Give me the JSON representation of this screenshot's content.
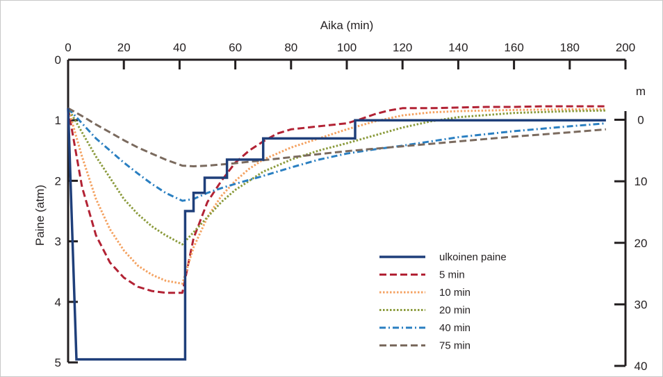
{
  "chart_data": {
    "type": "line",
    "xlabel": "Aika (min)",
    "ylabel": "Paine (atm)",
    "y2label": "m",
    "xlim": [
      0,
      200
    ],
    "ylim": [
      0,
      5
    ],
    "y2lim": [
      -10,
      40
    ],
    "y_inverted": true,
    "grid": false,
    "legend_position": "bottom-right",
    "x_ticks": [
      "0",
      "20",
      "40",
      "60",
      "80",
      "100",
      "120",
      "140",
      "160",
      "180",
      "200"
    ],
    "y_ticks": [
      "0",
      "1",
      "2",
      "3",
      "4",
      "5"
    ],
    "y2_ticks": [
      "0",
      "10",
      "20",
      "30",
      "40"
    ],
    "series": [
      {
        "name": "ulkoinen paine",
        "color": "#1f3f7a",
        "dash": "solid",
        "x": [
          0,
          3,
          42,
          42,
          45,
          45,
          49,
          49,
          57,
          57,
          70,
          70,
          103,
          103,
          193
        ],
        "y": [
          0.8,
          4.95,
          4.95,
          2.5,
          2.5,
          2.2,
          2.2,
          1.95,
          1.95,
          1.65,
          1.65,
          1.3,
          1.3,
          1.0,
          1.0
        ]
      },
      {
        "name": "5 min",
        "color": "#b22234",
        "dash": "dashed",
        "x": [
          0,
          5,
          10,
          15,
          20,
          25,
          30,
          35,
          41,
          45,
          50,
          55,
          60,
          65,
          70,
          75,
          80,
          90,
          100,
          105,
          110,
          115,
          120,
          130,
          140,
          150,
          160,
          170,
          180,
          193
        ],
        "y": [
          0.8,
          2.1,
          2.9,
          3.35,
          3.6,
          3.75,
          3.82,
          3.85,
          3.85,
          2.95,
          2.35,
          2.0,
          1.7,
          1.5,
          1.35,
          1.22,
          1.15,
          1.1,
          1.05,
          0.98,
          0.9,
          0.84,
          0.8,
          0.8,
          0.79,
          0.78,
          0.78,
          0.77,
          0.77,
          0.77
        ]
      },
      {
        "name": "10 min",
        "color": "#f4a261",
        "dash": "dotted",
        "x": [
          0,
          5,
          10,
          15,
          20,
          25,
          30,
          35,
          41,
          45,
          50,
          55,
          60,
          65,
          70,
          80,
          90,
          100,
          110,
          120,
          130,
          140,
          160,
          180,
          193
        ],
        "y": [
          0.8,
          1.6,
          2.3,
          2.8,
          3.15,
          3.4,
          3.55,
          3.65,
          3.7,
          3.1,
          2.6,
          2.25,
          2.0,
          1.8,
          1.65,
          1.45,
          1.3,
          1.15,
          1.02,
          0.92,
          0.87,
          0.85,
          0.83,
          0.82,
          0.82
        ]
      },
      {
        "name": "20 min",
        "color": "#8a9a3b",
        "dash": "dotted",
        "x": [
          0,
          5,
          10,
          15,
          20,
          25,
          30,
          35,
          41,
          45,
          50,
          55,
          60,
          70,
          80,
          90,
          100,
          110,
          120,
          130,
          140,
          160,
          180,
          193
        ],
        "y": [
          0.8,
          1.2,
          1.6,
          1.95,
          2.3,
          2.55,
          2.75,
          2.9,
          3.05,
          2.85,
          2.6,
          2.35,
          2.15,
          1.85,
          1.65,
          1.5,
          1.38,
          1.25,
          1.12,
          1.02,
          0.95,
          0.88,
          0.85,
          0.84
        ]
      },
      {
        "name": "40 min",
        "color": "#2a7fc1",
        "dash": "dashdot",
        "x": [
          0,
          5,
          10,
          15,
          20,
          25,
          30,
          35,
          41,
          45,
          50,
          55,
          60,
          70,
          80,
          90,
          100,
          110,
          120,
          130,
          140,
          160,
          180,
          193
        ],
        "y": [
          0.8,
          1.05,
          1.3,
          1.5,
          1.7,
          1.88,
          2.05,
          2.2,
          2.33,
          2.3,
          2.2,
          2.12,
          2.05,
          1.92,
          1.78,
          1.65,
          1.55,
          1.48,
          1.42,
          1.35,
          1.28,
          1.18,
          1.1,
          1.05
        ]
      },
      {
        "name": "75 min",
        "color": "#7a6a5e",
        "dash": "dashed",
        "x": [
          0,
          5,
          10,
          15,
          20,
          25,
          30,
          35,
          41,
          45,
          50,
          55,
          60,
          70,
          80,
          90,
          100,
          110,
          120,
          130,
          140,
          160,
          180,
          193
        ],
        "y": [
          0.8,
          0.93,
          1.07,
          1.2,
          1.33,
          1.45,
          1.55,
          1.65,
          1.75,
          1.76,
          1.75,
          1.73,
          1.71,
          1.66,
          1.61,
          1.56,
          1.51,
          1.47,
          1.43,
          1.39,
          1.35,
          1.27,
          1.2,
          1.15
        ]
      }
    ]
  }
}
